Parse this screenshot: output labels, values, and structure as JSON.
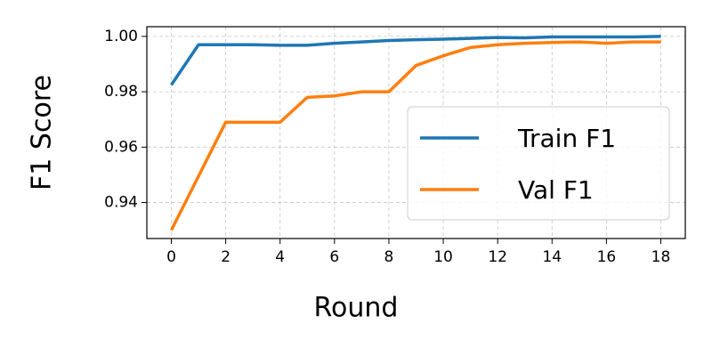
{
  "chart_data": {
    "type": "line",
    "x_label": "Round",
    "y_label": "F1 Score",
    "x": [
      0,
      1,
      2,
      3,
      4,
      5,
      6,
      7,
      8,
      9,
      10,
      11,
      12,
      13,
      14,
      15,
      16,
      17,
      18
    ],
    "series": [
      {
        "name": "Train F1",
        "color": "#1f77b4",
        "values": [
          0.9825,
          0.997,
          0.997,
          0.997,
          0.9968,
          0.9968,
          0.9975,
          0.998,
          0.9985,
          0.9988,
          0.999,
          0.9993,
          0.9996,
          0.9995,
          0.9998,
          0.9998,
          0.9998,
          0.9998,
          1.0
        ]
      },
      {
        "name": "Val F1",
        "color": "#ff7f0e",
        "values": [
          0.93,
          0.9495,
          0.969,
          0.969,
          0.969,
          0.978,
          0.9785,
          0.98,
          0.98,
          0.9895,
          0.993,
          0.996,
          0.997,
          0.9975,
          0.9978,
          0.998,
          0.9975,
          0.998,
          0.998
        ]
      }
    ],
    "xlim": [
      -0.9,
      18.9
    ],
    "ylim": [
      0.927,
      1.0035
    ],
    "xticks": [
      0,
      2,
      4,
      6,
      8,
      10,
      12,
      14,
      16,
      18
    ],
    "yticks": [
      0.94,
      0.96,
      0.98,
      {
        "value": 1,
        "label": "1.00"
      }
    ],
    "grid": true,
    "legend": "lower right"
  }
}
